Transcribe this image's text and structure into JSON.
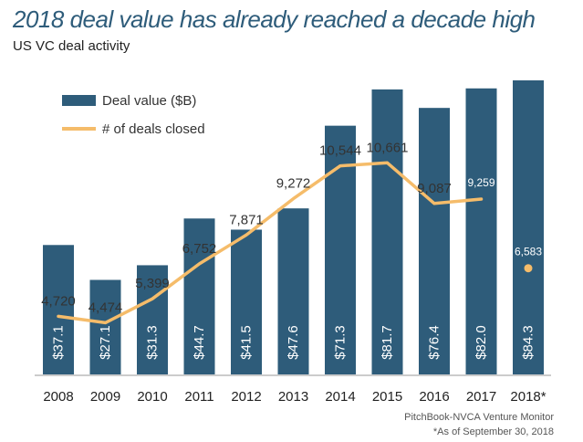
{
  "title": "2018 deal value has already reached a decade high",
  "subtitle": "US VC deal activity",
  "source": "PitchBook-NVCA Venture Monitor",
  "footnote": "*As of September 30, 2018",
  "colors": {
    "bar": "#2e5c7a",
    "line": "#f5bc6a",
    "text": "#333333",
    "bar_label": "#ffffff"
  },
  "chart_data": {
    "type": "bar",
    "categories": [
      "2008",
      "2009",
      "2010",
      "2011",
      "2012",
      "2013",
      "2014",
      "2015",
      "2016",
      "2017",
      "2018*"
    ],
    "series": [
      {
        "name": "Deal value ($B)",
        "type": "bar",
        "values": [
          37.1,
          27.1,
          31.3,
          44.7,
          41.5,
          47.6,
          71.3,
          81.7,
          76.4,
          82.0,
          84.3
        ],
        "labels": [
          "$37.1",
          "$27.1",
          "$31.3",
          "$44.7",
          "$41.5",
          "$47.6",
          "$71.3",
          "$81.7",
          "$76.4",
          "$82.0",
          "$84.3"
        ]
      },
      {
        "name": "# of deals closed",
        "type": "line",
        "values": [
          4720,
          4474,
          5399,
          6752,
          7871,
          9272,
          10544,
          10661,
          9087,
          9259,
          6583
        ],
        "labels": [
          "4,720",
          "4,474",
          "5,399",
          "6,752",
          "7,871",
          "9,272",
          "10,544",
          "10,661",
          "9,087",
          "9,259",
          "6,583"
        ],
        "line_through_index": 9,
        "marker_only_index": 10
      }
    ],
    "legend": {
      "position": "top-left",
      "items": [
        "Deal value ($B)",
        "# of deals closed"
      ]
    },
    "grid": false
  }
}
